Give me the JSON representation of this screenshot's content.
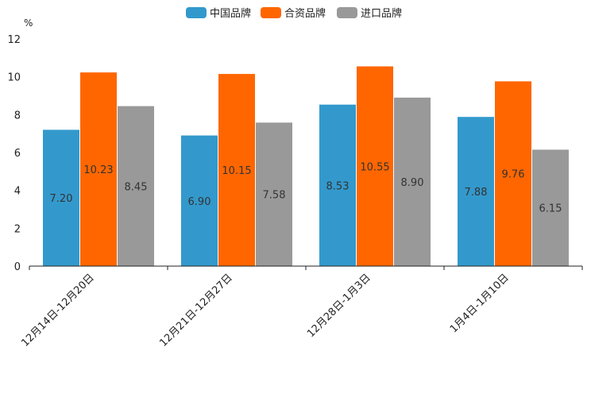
{
  "chart_data": {
    "type": "bar",
    "title": "",
    "ylabel": "%",
    "xlabel": "",
    "ylim": [
      0,
      12
    ],
    "yticks": [
      0,
      2,
      4,
      6,
      8,
      10,
      12
    ],
    "categories": [
      "12月14日-12月20日",
      "12月21日-12月27日",
      "12月28日-1月3日",
      "1月4日-1月10日"
    ],
    "series": [
      {
        "name": "中国品牌",
        "color": "#3399cc",
        "values": [
          7.2,
          6.9,
          8.53,
          7.88
        ],
        "labels": [
          "7.20",
          "6.90",
          "8.53",
          "7.88"
        ]
      },
      {
        "name": "合资品牌",
        "color": "#ff6600",
        "values": [
          10.23,
          10.15,
          10.55,
          9.76
        ],
        "labels": [
          "10.23",
          "10.15",
          "10.55",
          "9.76"
        ]
      },
      {
        "name": "进口品牌",
        "color": "#999999",
        "values": [
          8.45,
          7.58,
          8.9,
          6.15
        ],
        "labels": [
          "8.45",
          "7.58",
          "8.90",
          "6.15"
        ]
      }
    ],
    "legend_position": "top-center",
    "grid": false
  }
}
